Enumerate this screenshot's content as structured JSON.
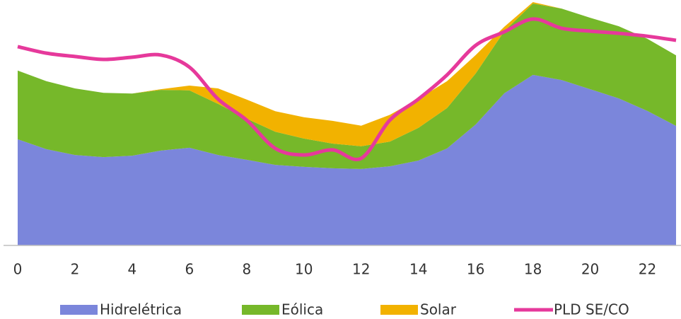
{
  "chart_data": {
    "type": "stacked-area-line",
    "x": [
      0,
      1,
      2,
      3,
      4,
      5,
      6,
      7,
      8,
      9,
      10,
      11,
      12,
      13,
      14,
      15,
      16,
      17,
      18,
      19,
      20,
      21,
      22,
      23
    ],
    "xlim": [
      0,
      23
    ],
    "xticks": [
      0,
      2,
      4,
      6,
      8,
      10,
      12,
      14,
      16,
      18,
      20,
      22
    ],
    "ylim": [
      0,
      100
    ],
    "legend": "bottom",
    "series": [
      {
        "name": "Hidrelétrica",
        "color": "#7b86db",
        "kind": "area",
        "values": [
          43.9,
          39.8,
          37.4,
          36.5,
          37.1,
          39.2,
          40.4,
          37.4,
          35.4,
          33.3,
          32.5,
          31.9,
          31.6,
          32.7,
          35.1,
          40.1,
          50,
          62.9,
          70.5,
          68.4,
          64.6,
          60.8,
          55.6,
          49.4
        ]
      },
      {
        "name": "Eólica",
        "color": "#76b82a",
        "kind": "area",
        "values": [
          28.4,
          28.1,
          27.5,
          26.6,
          25.7,
          25.1,
          23.7,
          21.1,
          17,
          13.7,
          11.7,
          10.2,
          9.4,
          10.2,
          13.5,
          16.7,
          21.1,
          25.7,
          29.5,
          29.5,
          29.5,
          29.8,
          29.8,
          29.2
        ]
      },
      {
        "name": "Solar",
        "color": "#f2b200",
        "kind": "area",
        "values": [
          0,
          0,
          0,
          0,
          0,
          0.3,
          2,
          6.4,
          7.9,
          8.5,
          8.8,
          9.4,
          8.5,
          11.1,
          12,
          11.1,
          7.6,
          1.8,
          0.6,
          0,
          0,
          0,
          0,
          0
        ]
      },
      {
        "name": "PLD SE/CO",
        "color": "#e6399b",
        "kind": "line",
        "values": [
          82.2,
          79.5,
          78.1,
          76.9,
          77.8,
          78.7,
          73.7,
          60.5,
          51.8,
          40.1,
          37.4,
          39.5,
          36,
          51.8,
          60.5,
          70.5,
          82.7,
          88.3,
          93.6,
          89.8,
          88.6,
          87.7,
          86.5,
          84.8
        ]
      }
    ]
  }
}
